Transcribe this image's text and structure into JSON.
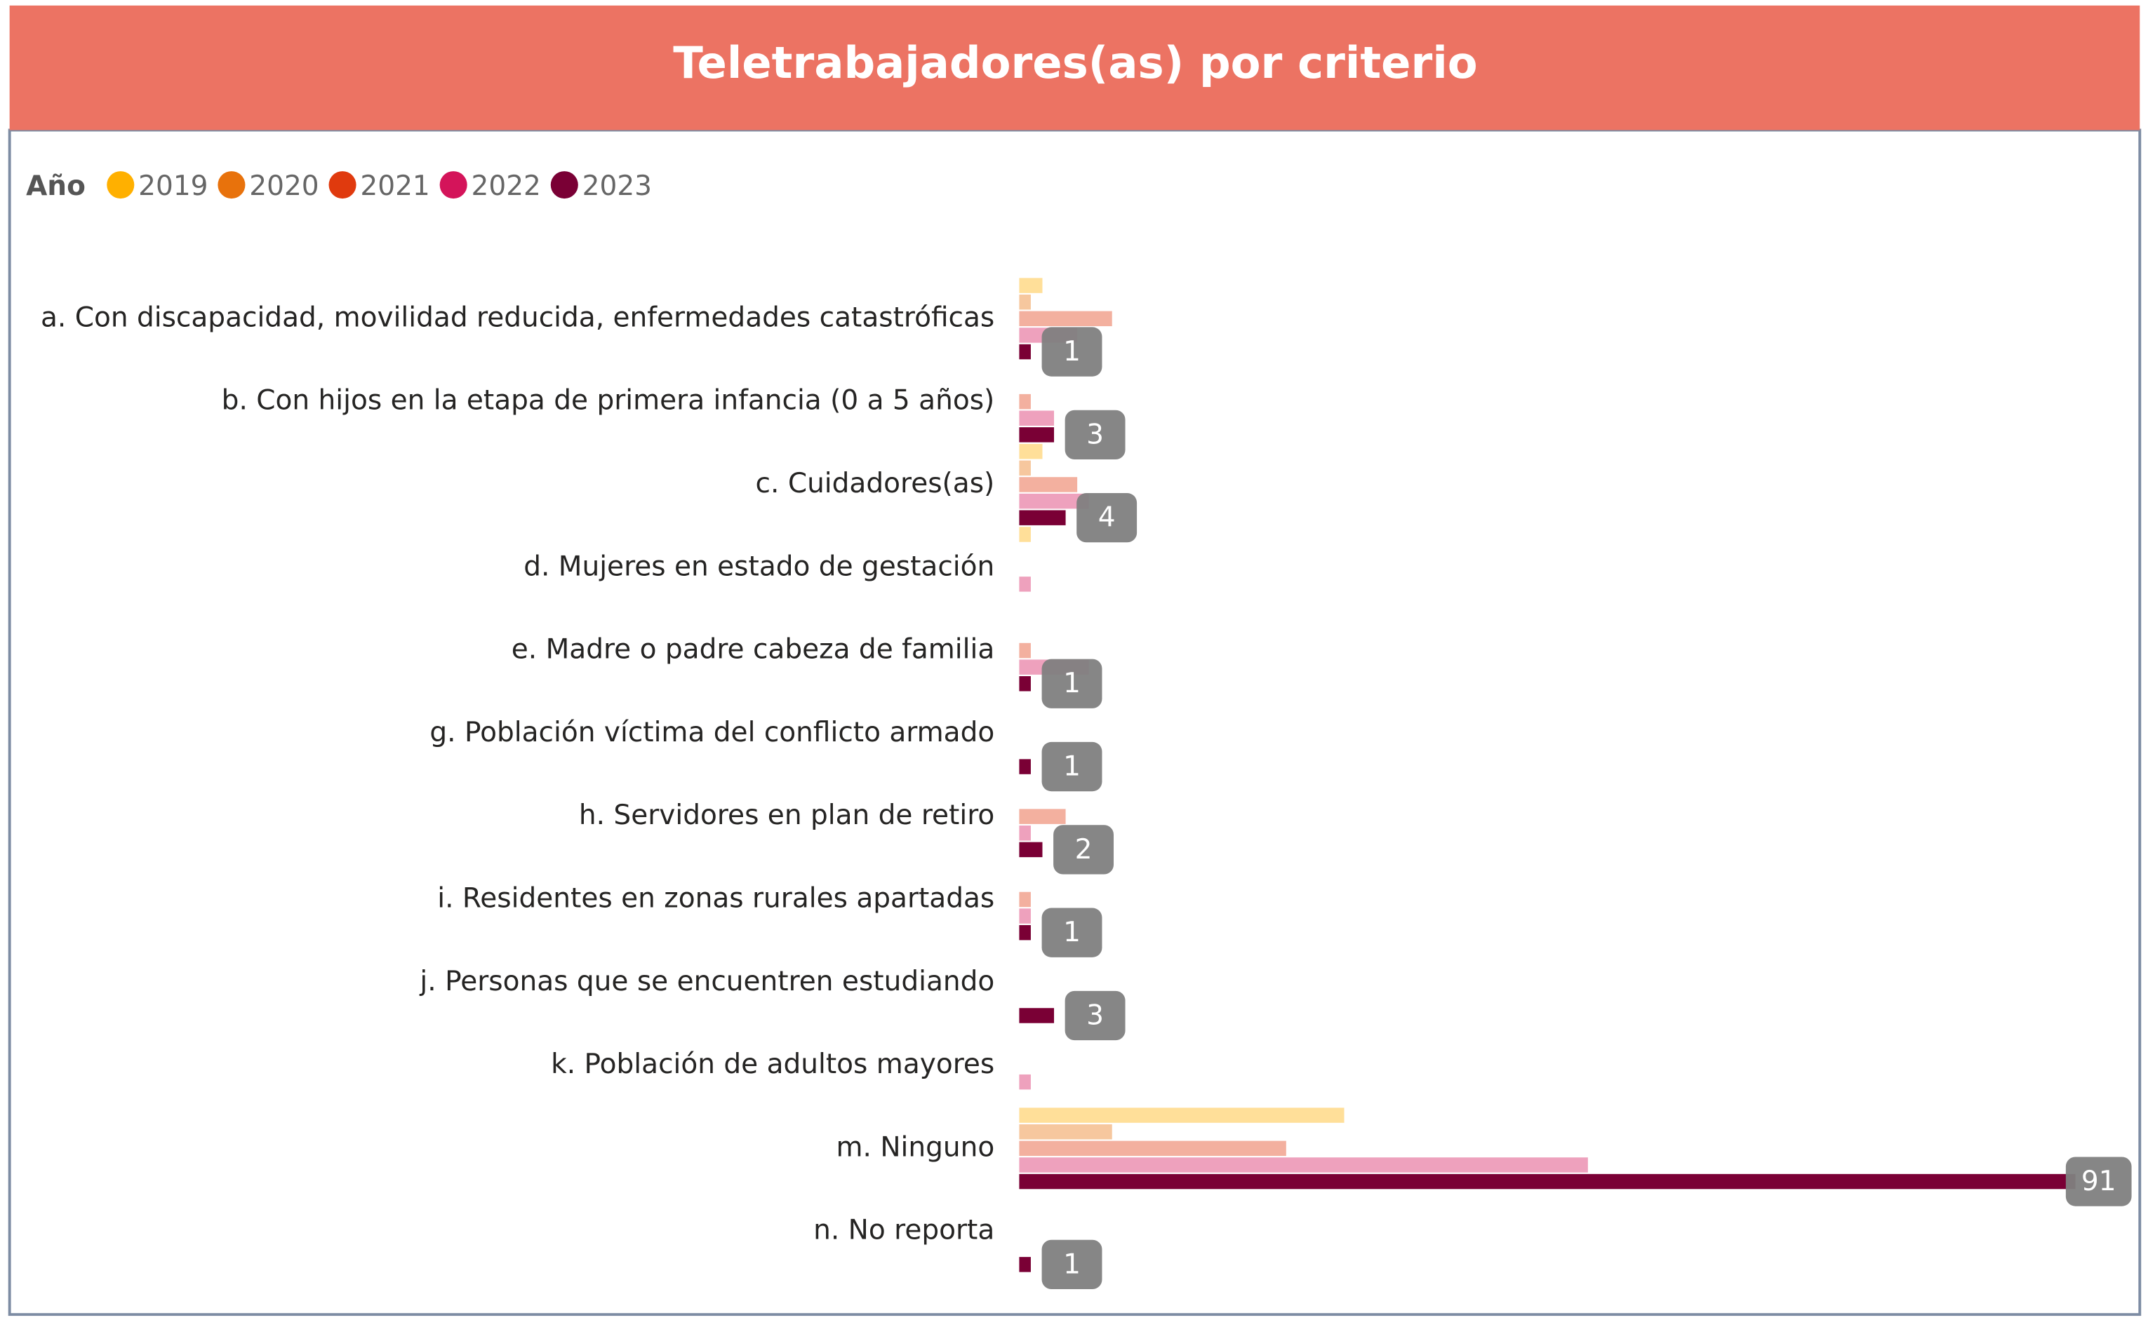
{
  "chart_data": {
    "type": "hbar_grouped",
    "title": "Teletrabajadores(as) por criterio",
    "legend_title": "Año",
    "categories": [
      "a. Con discapacidad, movilidad reducida, enfermedades catastróficas",
      "b. Con hijos en la etapa de primera infancia (0 a 5 años)",
      "c. Cuidadores(as)",
      "d. Mujeres en estado de gestación",
      "e. Madre o padre cabeza de familia",
      "g. Población víctima del conflicto armado",
      "h. Servidores en plan de retiro",
      "i. Residentes en zonas rurales apartadas",
      "j. Personas que se encuentren estudiando",
      "k. Población de adultos mayores",
      "m. Ninguno",
      "n. No reporta"
    ],
    "series": [
      {
        "name": "2019",
        "color": "#ffb000",
        "opacity": 0.4,
        "data_labels": false,
        "values": [
          2,
          null,
          2,
          1,
          null,
          null,
          null,
          null,
          null,
          null,
          28,
          null
        ]
      },
      {
        "name": "2020",
        "color": "#e8720c",
        "opacity": 0.4,
        "data_labels": false,
        "values": [
          1,
          null,
          1,
          null,
          null,
          null,
          null,
          null,
          null,
          null,
          8,
          null
        ]
      },
      {
        "name": "2021",
        "color": "#e03a0e",
        "opacity": 0.4,
        "data_labels": false,
        "values": [
          8,
          1,
          5,
          null,
          1,
          null,
          4,
          1,
          null,
          null,
          23,
          null
        ]
      },
      {
        "name": "2022",
        "color": "#d4145a",
        "opacity": 0.4,
        "data_labels": false,
        "values": [
          5,
          3,
          6,
          1,
          6,
          null,
          1,
          1,
          null,
          1,
          49,
          null
        ]
      },
      {
        "name": "2023",
        "color": "#7a0035",
        "opacity": 1,
        "data_labels": true,
        "values": [
          1,
          3,
          4,
          null,
          1,
          1,
          2,
          1,
          3,
          null,
          91,
          1
        ]
      }
    ]
  }
}
